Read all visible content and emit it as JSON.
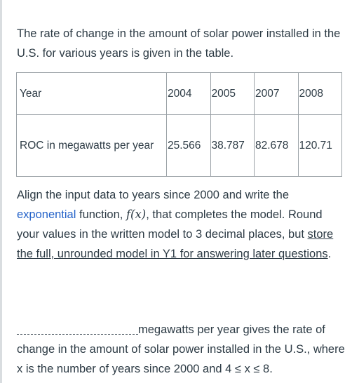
{
  "intro": "The rate of change in the amount of solar power installed in the U.S. for various years is given in the table.",
  "table": {
    "row1": {
      "label": "Year",
      "values": [
        "2004",
        "2005",
        "2007",
        "2008"
      ]
    },
    "row2": {
      "label": "ROC in megawatts per year",
      "values": [
        "25.566",
        "38.787",
        "82.678",
        "120.71"
      ]
    }
  },
  "prompt": {
    "part1": "Align the input data to years since 2000 and write the ",
    "link": "exponential",
    "part2": " function, ",
    "fx": "f(x)",
    "part3": ", that completes the model. Round your values in the written model to 3 decimal places, but ",
    "underlined": "store the full, unrounded model in Y1 for answering later questions",
    "part4": "."
  },
  "answer": {
    "text": "megawatts per year gives the rate of change in the amount of solar power installed in the U.S., where x is the number of years since 2000 and 4 ≤ x ≤ 8."
  }
}
